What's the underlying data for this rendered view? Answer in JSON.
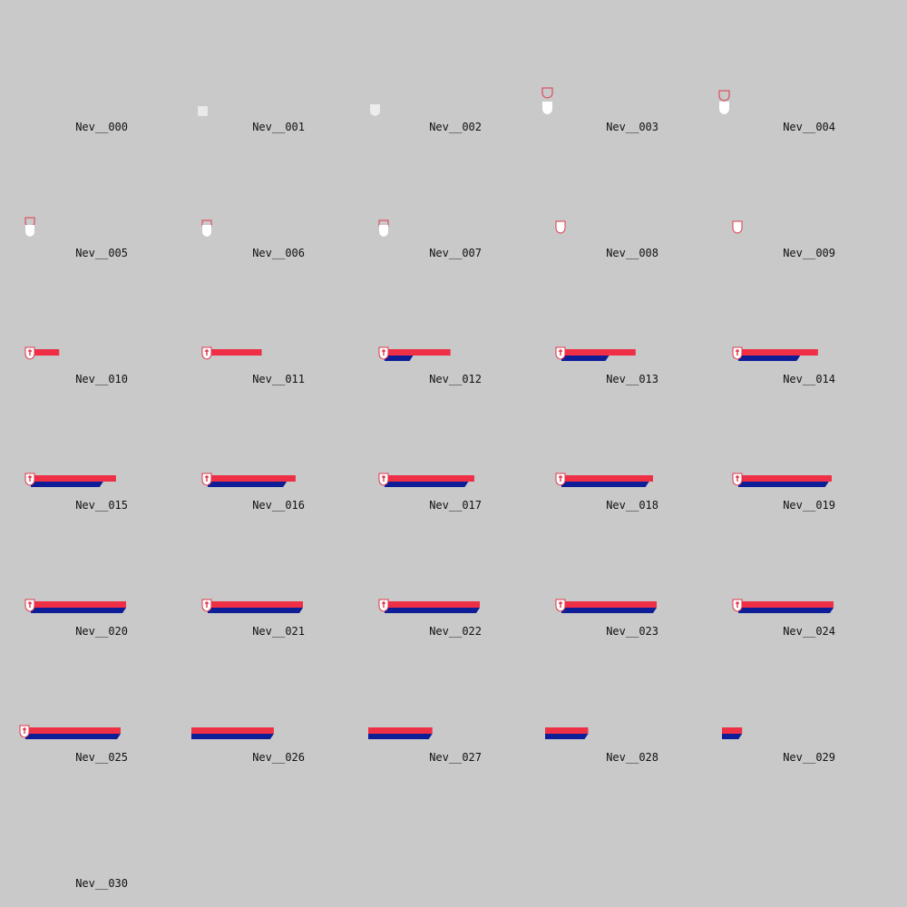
{
  "colors": {
    "background": "#c9c9c9",
    "red": "#ee2f45",
    "blue": "#0e1e97",
    "shield_fill": "#ffffff",
    "shield_outline": "#e0364a",
    "label": "#111111"
  },
  "frames": [
    {
      "label": "Nev__000",
      "state": "empty"
    },
    {
      "label": "Nev__001",
      "state": "shield-square-appear"
    },
    {
      "label": "Nev__002",
      "state": "shield-forming"
    },
    {
      "label": "Nev__003",
      "state": "shield-drop-outline-above"
    },
    {
      "label": "Nev__004",
      "state": "shield-drop-outline-close"
    },
    {
      "label": "Nev__005",
      "state": "shield-outline-stacked"
    },
    {
      "label": "Nev__006",
      "state": "shield-outline-merging"
    },
    {
      "label": "Nev__007",
      "state": "shield-outline-merging"
    },
    {
      "label": "Nev__008",
      "state": "shield-outlined"
    },
    {
      "label": "Nev__009",
      "state": "shield-outlined"
    },
    {
      "label": "Nev__010",
      "state": "red-bar-growing",
      "red_progress": 0.27,
      "blue_progress": 0.0
    },
    {
      "label": "Nev__011",
      "state": "red-bar-growing",
      "red_progress": 0.55,
      "blue_progress": 0.0
    },
    {
      "label": "Nev__012",
      "state": "bars-growing",
      "red_progress": 0.68,
      "blue_progress": 0.3
    },
    {
      "label": "Nev__013",
      "state": "bars-growing",
      "red_progress": 0.77,
      "blue_progress": 0.5
    },
    {
      "label": "Nev__014",
      "state": "bars-growing",
      "red_progress": 0.83,
      "blue_progress": 0.65
    },
    {
      "label": "Nev__015",
      "state": "bars-growing",
      "red_progress": 0.89,
      "blue_progress": 0.76
    },
    {
      "label": "Nev__016",
      "state": "bars-growing",
      "red_progress": 0.92,
      "blue_progress": 0.83
    },
    {
      "label": "Nev__017",
      "state": "bars-growing",
      "red_progress": 0.94,
      "blue_progress": 0.88
    },
    {
      "label": "Nev__018",
      "state": "bars-growing",
      "red_progress": 0.96,
      "blue_progress": 0.92
    },
    {
      "label": "Nev__019",
      "state": "bars-growing",
      "red_progress": 0.98,
      "blue_progress": 0.95
    },
    {
      "label": "Nev__020",
      "state": "bars-full",
      "red_progress": 1.0,
      "blue_progress": 1.0
    },
    {
      "label": "Nev__021",
      "state": "bars-full",
      "red_progress": 1.0,
      "blue_progress": 1.0
    },
    {
      "label": "Nev__022",
      "state": "bars-full",
      "red_progress": 1.0,
      "blue_progress": 1.0
    },
    {
      "label": "Nev__023",
      "state": "bars-full",
      "red_progress": 1.0,
      "blue_progress": 1.0
    },
    {
      "label": "Nev__024",
      "state": "bars-full",
      "red_progress": 1.0,
      "blue_progress": 1.0
    },
    {
      "label": "Nev__025",
      "state": "bars-full-shifted",
      "red_progress": 1.0,
      "blue_progress": 1.0
    },
    {
      "label": "Nev__026",
      "state": "bars-exit",
      "exit_remaining": 0.9
    },
    {
      "label": "Nev__027",
      "state": "bars-exit",
      "exit_remaining": 0.7
    },
    {
      "label": "Nev__028",
      "state": "bars-exit",
      "exit_remaining": 0.47
    },
    {
      "label": "Nev__029",
      "state": "bars-exit",
      "exit_remaining": 0.22
    },
    {
      "label": "Nev__030",
      "state": "empty"
    }
  ]
}
